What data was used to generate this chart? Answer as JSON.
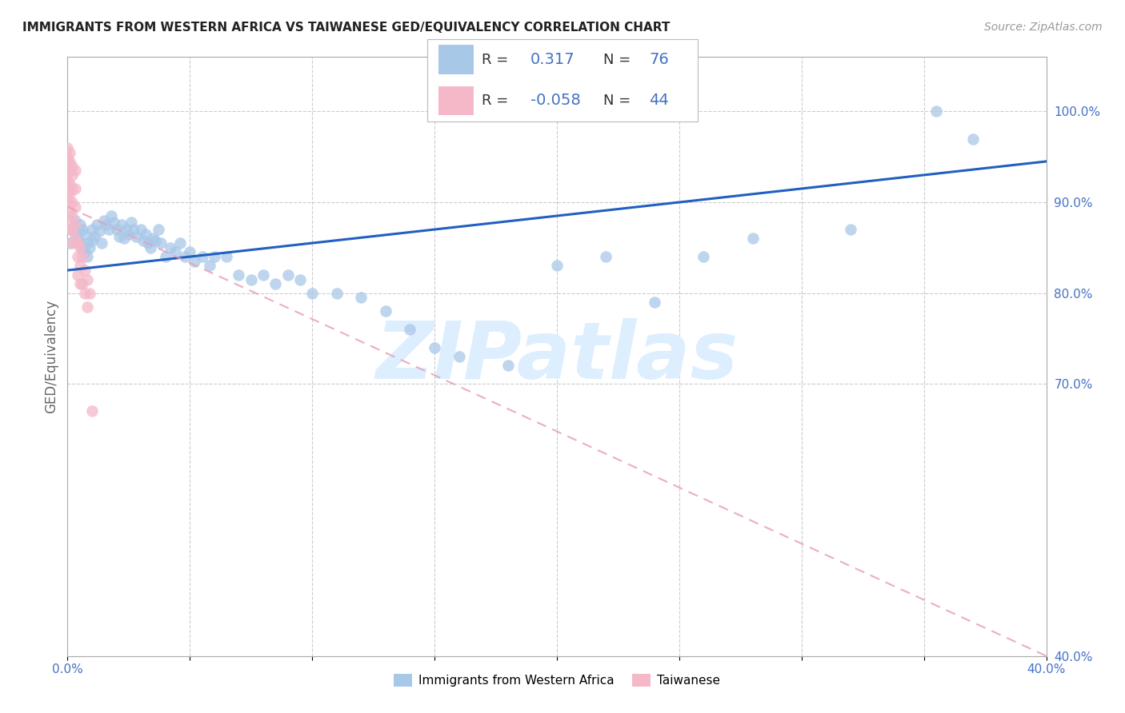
{
  "title": "IMMIGRANTS FROM WESTERN AFRICA VS TAIWANESE GED/EQUIVALENCY CORRELATION CHART",
  "source": "Source: ZipAtlas.com",
  "ylabel": "GED/Equivalency",
  "blue_color": "#a8c8e8",
  "pink_color": "#f4b8c8",
  "trend_blue": "#2060c0",
  "trend_pink_color": "#e8a0b8",
  "watermark": "ZIPatlas",
  "watermark_color": "#ddeeff",
  "blue_scatter_x": [
    0.001,
    0.002,
    0.003,
    0.003,
    0.004,
    0.005,
    0.005,
    0.006,
    0.006,
    0.007,
    0.007,
    0.008,
    0.008,
    0.009,
    0.01,
    0.01,
    0.011,
    0.012,
    0.013,
    0.014,
    0.015,
    0.016,
    0.017,
    0.018,
    0.019,
    0.02,
    0.021,
    0.022,
    0.023,
    0.024,
    0.025,
    0.026,
    0.027,
    0.028,
    0.03,
    0.031,
    0.032,
    0.033,
    0.034,
    0.035,
    0.036,
    0.037,
    0.038,
    0.04,
    0.042,
    0.044,
    0.046,
    0.048,
    0.05,
    0.052,
    0.055,
    0.058,
    0.06,
    0.065,
    0.07,
    0.075,
    0.08,
    0.085,
    0.09,
    0.095,
    0.1,
    0.11,
    0.12,
    0.13,
    0.14,
    0.15,
    0.16,
    0.18,
    0.2,
    0.22,
    0.24,
    0.26,
    0.28,
    0.32,
    0.355,
    0.37
  ],
  "blue_scatter_y": [
    0.855,
    0.87,
    0.88,
    0.865,
    0.86,
    0.875,
    0.855,
    0.87,
    0.85,
    0.865,
    0.845,
    0.855,
    0.84,
    0.85,
    0.87,
    0.858,
    0.862,
    0.875,
    0.868,
    0.855,
    0.88,
    0.875,
    0.87,
    0.885,
    0.878,
    0.87,
    0.862,
    0.875,
    0.86,
    0.87,
    0.865,
    0.878,
    0.87,
    0.862,
    0.87,
    0.858,
    0.865,
    0.855,
    0.85,
    0.86,
    0.858,
    0.87,
    0.855,
    0.84,
    0.85,
    0.845,
    0.855,
    0.84,
    0.845,
    0.835,
    0.84,
    0.83,
    0.84,
    0.84,
    0.82,
    0.815,
    0.82,
    0.81,
    0.82,
    0.815,
    0.8,
    0.8,
    0.795,
    0.78,
    0.76,
    0.74,
    0.73,
    0.72,
    0.83,
    0.84,
    0.79,
    0.84,
    0.86,
    0.87,
    1.0,
    0.97
  ],
  "pink_scatter_x": [
    0.0,
    0.0,
    0.0,
    0.0,
    0.0,
    0.0,
    0.0,
    0.0,
    0.0,
    0.001,
    0.001,
    0.001,
    0.001,
    0.001,
    0.001,
    0.001,
    0.001,
    0.001,
    0.002,
    0.002,
    0.002,
    0.002,
    0.002,
    0.002,
    0.002,
    0.003,
    0.003,
    0.003,
    0.003,
    0.003,
    0.004,
    0.004,
    0.004,
    0.005,
    0.005,
    0.005,
    0.006,
    0.006,
    0.007,
    0.007,
    0.008,
    0.008,
    0.009,
    0.01
  ],
  "pink_scatter_y": [
    0.96,
    0.95,
    0.945,
    0.94,
    0.935,
    0.925,
    0.92,
    0.91,
    0.9,
    0.955,
    0.945,
    0.935,
    0.92,
    0.91,
    0.9,
    0.89,
    0.88,
    0.87,
    0.94,
    0.93,
    0.915,
    0.9,
    0.885,
    0.87,
    0.855,
    0.935,
    0.915,
    0.895,
    0.875,
    0.86,
    0.855,
    0.84,
    0.82,
    0.85,
    0.83,
    0.81,
    0.84,
    0.81,
    0.825,
    0.8,
    0.815,
    0.785,
    0.8,
    0.67
  ],
  "xlim": [
    0.0,
    0.4
  ],
  "ylim": [
    0.4,
    1.06
  ],
  "x_ticks": [
    0.0,
    0.05,
    0.1,
    0.15,
    0.2,
    0.25,
    0.3,
    0.35,
    0.4
  ],
  "y_ticks": [
    0.4,
    0.7,
    0.8,
    0.9,
    1.0
  ],
  "y_tick_labels": [
    "40.0%",
    "70.0%",
    "80.0%",
    "90.0%",
    "100.0%"
  ]
}
